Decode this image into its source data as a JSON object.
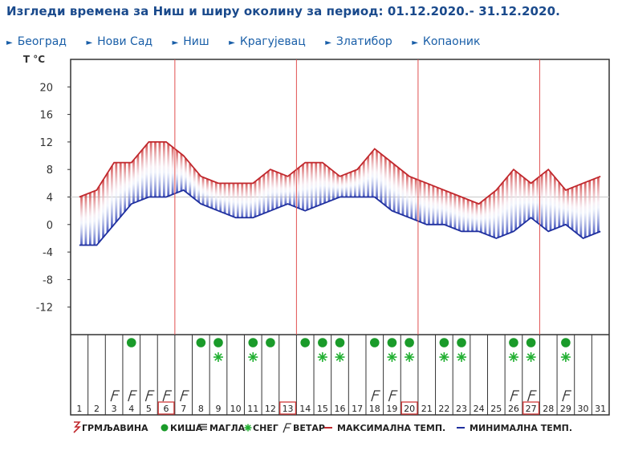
{
  "title": "Изгледи времена за Ниш и ширу околину за период: 01.12.2020.- 31.12.2020.",
  "nav": [
    {
      "label": "Београд"
    },
    {
      "label": "Нови Сад"
    },
    {
      "label": "Ниш"
    },
    {
      "label": "Крагујевац"
    },
    {
      "label": "Златибор"
    },
    {
      "label": "Копаоник"
    }
  ],
  "chart_data": {
    "type": "area",
    "unit_label": "T °C",
    "ylim": [
      -16,
      24
    ],
    "yticks": [
      20,
      16,
      12,
      8,
      4,
      0,
      -4,
      -8,
      -12
    ],
    "x": [
      1,
      2,
      3,
      4,
      5,
      6,
      7,
      8,
      9,
      10,
      11,
      12,
      13,
      14,
      15,
      16,
      17,
      18,
      19,
      20,
      21,
      22,
      23,
      24,
      25,
      26,
      27,
      28,
      29,
      30,
      31
    ],
    "series": [
      {
        "name": "МАКСИМАЛНА ТЕМП.",
        "color": "#c0282d",
        "values": [
          4,
          5,
          9,
          9,
          12,
          12,
          10,
          7,
          6,
          6,
          6,
          8,
          7,
          9,
          9,
          7,
          8,
          11,
          9,
          7,
          6,
          5,
          4,
          3,
          5,
          8,
          6,
          8,
          5,
          6,
          7
        ]
      },
      {
        "name": "МИНИМАЛНА ТЕМП.",
        "color": "#1f2f9e",
        "values": [
          -3,
          -3,
          0,
          3,
          4,
          4,
          5,
          3,
          2,
          1,
          1,
          2,
          3,
          2,
          3,
          4,
          4,
          4,
          2,
          1,
          0,
          0,
          -1,
          -1,
          -2,
          -1,
          1,
          -1,
          0,
          -2,
          -1
        ]
      }
    ],
    "weekend_lines_after_day": [
      6,
      13,
      20,
      27
    ],
    "highlighted_days": [
      6,
      13,
      20,
      27
    ],
    "rain_days": [
      4,
      8,
      9,
      11,
      12,
      14,
      15,
      16,
      18,
      19,
      20,
      22,
      23,
      26,
      27,
      29
    ],
    "snow_days": [
      9,
      11,
      15,
      16,
      19,
      20,
      22,
      23,
      26,
      27,
      29
    ],
    "wind_days": [
      3,
      4,
      5,
      6,
      7,
      18,
      19,
      26,
      27,
      29
    ],
    "legend": [
      {
        "key": "thunder",
        "label": "ГРМЉАВИНА",
        "color": "#c0282d"
      },
      {
        "key": "rain",
        "label": "КИША",
        "color": "#1a9b2a"
      },
      {
        "key": "fog",
        "label": "МАГЛА",
        "color": "#333333"
      },
      {
        "key": "snow",
        "label": "СНЕГ",
        "color": "#22b032"
      },
      {
        "key": "wind",
        "label": "ВЕТАР",
        "color": "#333333"
      },
      {
        "key": "max",
        "label": "МАКСИМАЛНА ТЕМП.",
        "color": "#c0282d"
      },
      {
        "key": "min",
        "label": "МИНИМАЛНА ТЕМП.",
        "color": "#1f2f9e"
      }
    ]
  }
}
